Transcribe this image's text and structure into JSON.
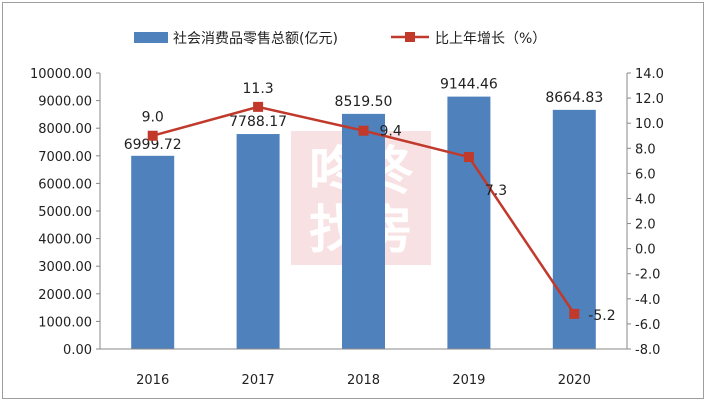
{
  "chart_data": {
    "type": "bar",
    "categories": [
      "2016",
      "2017",
      "2018",
      "2019",
      "2020"
    ],
    "series": [
      {
        "name": "社会消费品零售总额(亿元)",
        "type": "bar",
        "axis": "left",
        "color": "#4f81bd",
        "values": [
          6999.72,
          7788.17,
          8519.5,
          9144.46,
          8664.83
        ],
        "labels": [
          "6999.72",
          "7788.17",
          "8519.50",
          "9144.46",
          "8664.83"
        ]
      },
      {
        "name": "比上年增长（%）",
        "type": "line",
        "axis": "right",
        "color": "#c0392b",
        "values": [
          9.0,
          11.3,
          9.4,
          7.3,
          -5.2
        ],
        "labels": [
          "9.0",
          "11.3",
          "9.4",
          "7.3",
          "-5.2"
        ]
      }
    ],
    "y_left": {
      "min": 0,
      "max": 10000,
      "ticks": [
        "0.00",
        "1000.00",
        "2000.00",
        "3000.00",
        "4000.00",
        "5000.00",
        "6000.00",
        "7000.00",
        "8000.00",
        "9000.00",
        "10000.00"
      ]
    },
    "y_right": {
      "min": -8,
      "max": 14,
      "ticks": [
        "-8.0",
        "-6.0",
        "-4.0",
        "-2.0",
        "0.0",
        "2.0",
        "4.0",
        "6.0",
        "8.0",
        "10.0",
        "12.0",
        "14.0"
      ]
    },
    "legend_position": "top",
    "grid": false
  },
  "watermark": {
    "line1": "咚咚",
    "line2": "找房"
  }
}
